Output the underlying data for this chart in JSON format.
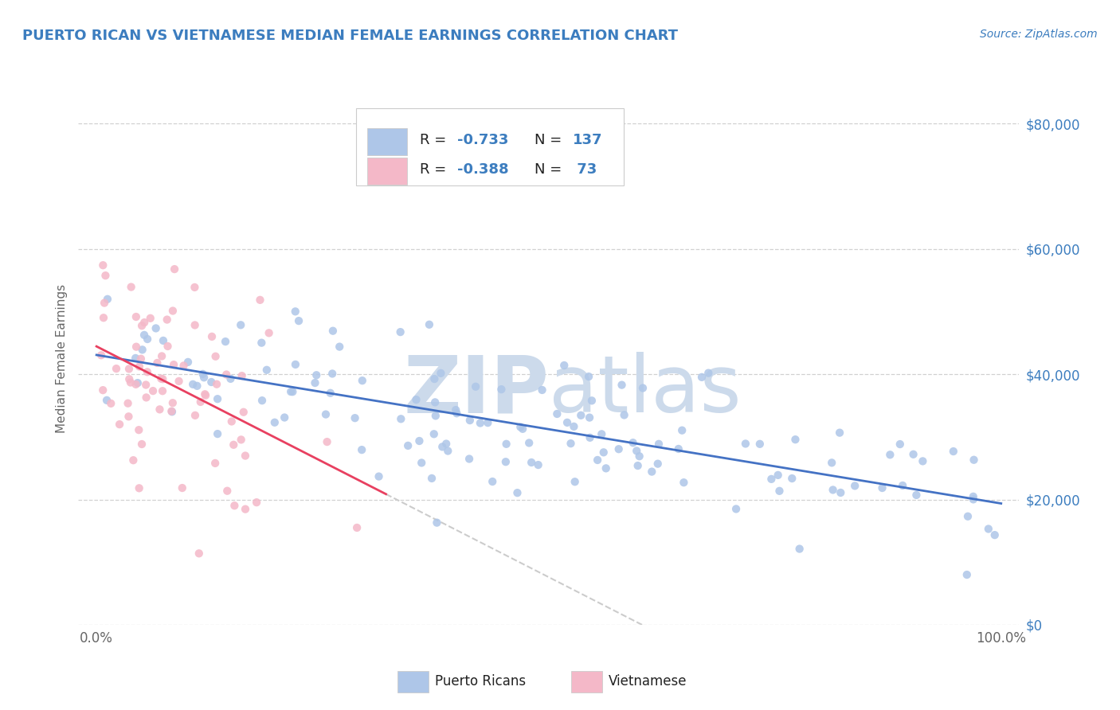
{
  "title": "PUERTO RICAN VS VIETNAMESE MEDIAN FEMALE EARNINGS CORRELATION CHART",
  "source": "Source: ZipAtlas.com",
  "ylabel": "Median Female Earnings",
  "ytick_labels": [
    "$0",
    "$20,000",
    "$40,000",
    "$60,000",
    "$80,000"
  ],
  "ytick_values": [
    0,
    20000,
    40000,
    60000,
    80000
  ],
  "ylim": [
    0,
    85000
  ],
  "xlim": [
    -0.02,
    1.02
  ],
  "watermark_text": "ZIP atlas",
  "watermark_color": "#ccdaeb",
  "title_color": "#3c7dbf",
  "source_color": "#3c7dbf",
  "axis_label_color": "#666666",
  "ytick_color": "#3c7dbf",
  "xtick_color": "#666666",
  "grid_color": "#cccccc",
  "trendline_pr_color": "#4472c4",
  "trendline_viet_color": "#e84060",
  "trendline_dashed_color": "#cccccc",
  "pr_scatter_color": "#aec6e8",
  "viet_scatter_color": "#f4b8c8",
  "legend_text_color": "#3c7dbf",
  "legend_label_color": "#222222",
  "legend_border_color": "#cccccc",
  "bottom_legend_text_color": "#222222"
}
